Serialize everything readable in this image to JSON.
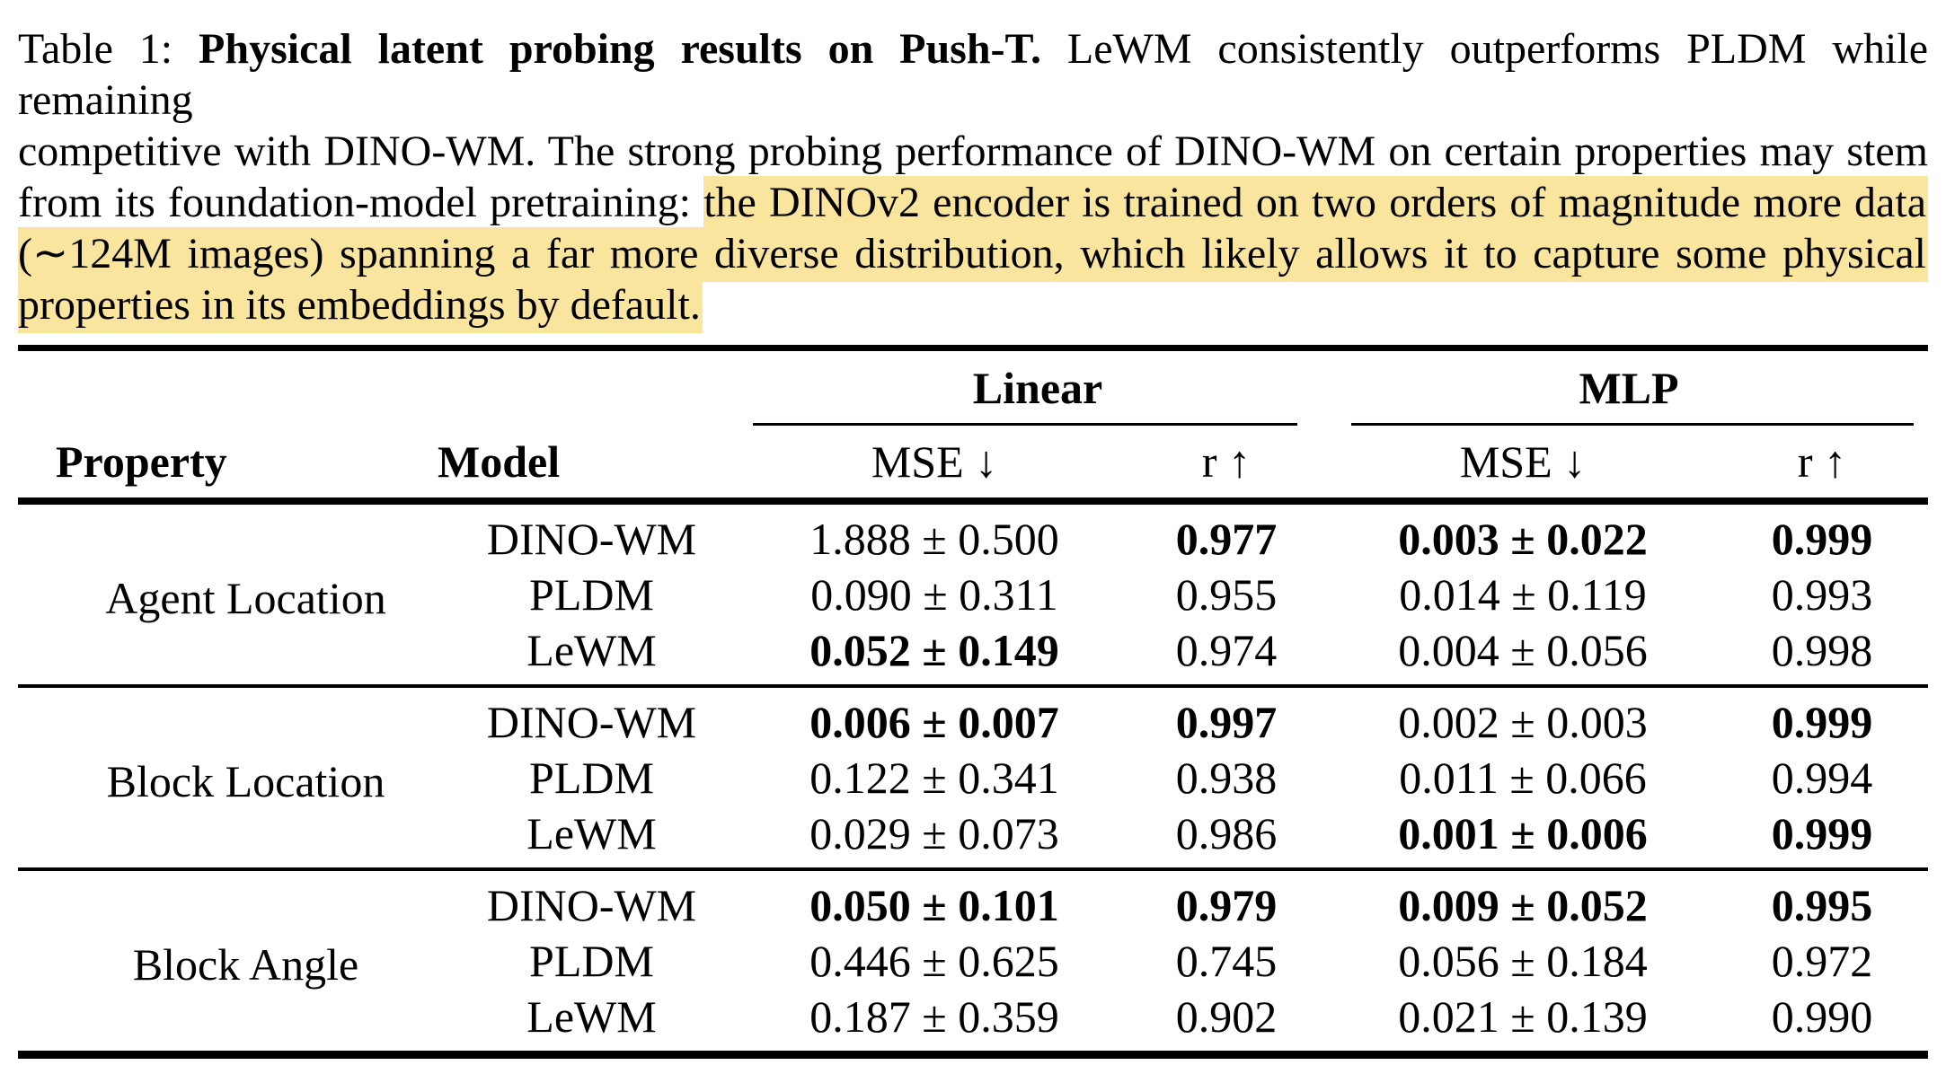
{
  "colors": {
    "highlight": "#FAE59E",
    "text": "#000000"
  },
  "caption": {
    "lines": [
      {
        "segments": [
          {
            "text": "Table 1: ",
            "bold": false,
            "highlight": false
          },
          {
            "text": "Physical latent probing results on Push-T.",
            "bold": true,
            "highlight": false
          },
          {
            "text": " LeWM consistently outperforms PLDM while remaining",
            "bold": false,
            "highlight": false
          }
        ]
      },
      {
        "segments": [
          {
            "text": "competitive with DINO-WM. The strong probing performance of DINO-WM on certain properties may stem",
            "bold": false,
            "highlight": false
          }
        ]
      },
      {
        "segments": [
          {
            "text": "from its foundation-model pretraining: ",
            "bold": false,
            "highlight": false
          },
          {
            "text": "the DINOv2 encoder is trained on two orders of magnitude more data",
            "bold": false,
            "highlight": true
          }
        ]
      },
      {
        "segments": [
          {
            "text": "(∼124M images) spanning a far more diverse distribution, which likely allows it to capture some physical",
            "bold": false,
            "highlight": true
          }
        ]
      },
      {
        "segments": [
          {
            "text": "properties in its embeddings by default.",
            "bold": false,
            "highlight": true
          }
        ]
      }
    ]
  },
  "table": {
    "type": "table",
    "column_groups": [
      {
        "label": "Linear"
      },
      {
        "label": "MLP"
      }
    ],
    "headers": {
      "property": "Property",
      "model": "Model",
      "linear_mse": "MSE ↓",
      "linear_r": "r ↑",
      "mlp_mse": "MSE ↓",
      "mlp_r": "r ↑"
    },
    "groups": [
      {
        "property": "Agent Location",
        "rows": [
          {
            "model": "DINO-WM",
            "linear_mse": "1.888 ± 0.500",
            "linear_r": "0.977",
            "mlp_mse": "0.003 ± 0.022",
            "mlp_r": "0.999",
            "bold": {
              "linear_mse": false,
              "linear_r": true,
              "mlp_mse": true,
              "mlp_r": true
            }
          },
          {
            "model": "PLDM",
            "linear_mse": "0.090 ± 0.311",
            "linear_r": "0.955",
            "mlp_mse": "0.014 ± 0.119",
            "mlp_r": "0.993",
            "bold": {
              "linear_mse": false,
              "linear_r": false,
              "mlp_mse": false,
              "mlp_r": false
            }
          },
          {
            "model": "LeWM",
            "linear_mse": "0.052 ± 0.149",
            "linear_r": "0.974",
            "mlp_mse": "0.004 ± 0.056",
            "mlp_r": "0.998",
            "bold": {
              "linear_mse": true,
              "linear_r": false,
              "mlp_mse": false,
              "mlp_r": false
            }
          }
        ]
      },
      {
        "property": "Block Location",
        "rows": [
          {
            "model": "DINO-WM",
            "linear_mse": "0.006 ± 0.007",
            "linear_r": "0.997",
            "mlp_mse": "0.002 ± 0.003",
            "mlp_r": "0.999",
            "bold": {
              "linear_mse": true,
              "linear_r": true,
              "mlp_mse": false,
              "mlp_r": true
            }
          },
          {
            "model": "PLDM",
            "linear_mse": "0.122 ± 0.341",
            "linear_r": "0.938",
            "mlp_mse": "0.011 ± 0.066",
            "mlp_r": "0.994",
            "bold": {
              "linear_mse": false,
              "linear_r": false,
              "mlp_mse": false,
              "mlp_r": false
            }
          },
          {
            "model": "LeWM",
            "linear_mse": "0.029 ± 0.073",
            "linear_r": "0.986",
            "mlp_mse": "0.001 ± 0.006",
            "mlp_r": "0.999",
            "bold": {
              "linear_mse": false,
              "linear_r": false,
              "mlp_mse": true,
              "mlp_r": true
            }
          }
        ]
      },
      {
        "property": "Block Angle",
        "rows": [
          {
            "model": "DINO-WM",
            "linear_mse": "0.050 ± 0.101",
            "linear_r": "0.979",
            "mlp_mse": "0.009 ± 0.052",
            "mlp_r": "0.995",
            "bold": {
              "linear_mse": true,
              "linear_r": true,
              "mlp_mse": true,
              "mlp_r": true
            }
          },
          {
            "model": "PLDM",
            "linear_mse": "0.446 ± 0.625",
            "linear_r": "0.745",
            "mlp_mse": "0.056 ± 0.184",
            "mlp_r": "0.972",
            "bold": {
              "linear_mse": false,
              "linear_r": false,
              "mlp_mse": false,
              "mlp_r": false
            }
          },
          {
            "model": "LeWM",
            "linear_mse": "0.187 ± 0.359",
            "linear_r": "0.902",
            "mlp_mse": "0.021 ± 0.139",
            "mlp_r": "0.990",
            "bold": {
              "linear_mse": false,
              "linear_r": false,
              "mlp_mse": false,
              "mlp_r": false
            }
          }
        ]
      }
    ]
  }
}
